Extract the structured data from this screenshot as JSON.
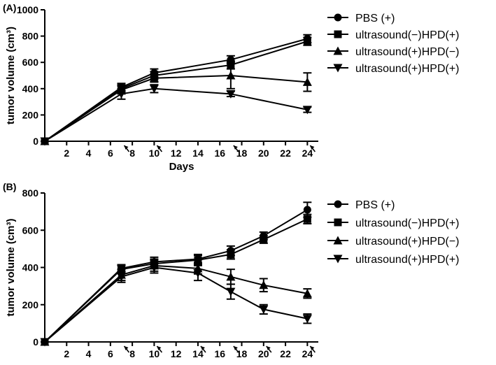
{
  "chart_data": [
    {
      "type": "line",
      "panel_label": "(A)",
      "title": "",
      "xlabel": "Days",
      "ylabel": "tumor volume (cm³)",
      "xlim": [
        0,
        25
      ],
      "ylim": [
        0,
        1000
      ],
      "x_ticks": [
        2,
        4,
        6,
        8,
        10,
        12,
        14,
        16,
        18,
        20,
        22,
        24
      ],
      "y_ticks": [
        0,
        200,
        400,
        600,
        800,
        1000
      ],
      "x_tick_labels": [
        "2",
        "4",
        "6",
        "8",
        "10",
        "12",
        "14",
        "16",
        "18",
        "20",
        "22",
        "24"
      ],
      "y_tick_labels": [
        "0",
        "200",
        "400",
        "600",
        "800",
        "1000"
      ],
      "arrow_days": [
        7,
        10,
        17,
        24
      ],
      "legend_position": "right",
      "grid": false,
      "series": [
        {
          "name": "PBS (+)",
          "marker": "circle",
          "x": [
            0,
            7,
            10,
            17,
            24
          ],
          "y": [
            0,
            410,
            520,
            620,
            780
          ],
          "err": [
            0,
            30,
            30,
            30,
            30
          ]
        },
        {
          "name": "ultrasound(−)HPD(+)",
          "marker": "square",
          "x": [
            0,
            7,
            10,
            17,
            24
          ],
          "y": [
            0,
            400,
            500,
            580,
            760
          ],
          "err": [
            0,
            30,
            30,
            30,
            30
          ]
        },
        {
          "name": "ultrasound(+)HPD(−)",
          "marker": "triangle-up",
          "x": [
            0,
            7,
            10,
            17,
            24
          ],
          "y": [
            0,
            390,
            480,
            500,
            450
          ],
          "err": [
            0,
            30,
            30,
            100,
            70
          ]
        },
        {
          "name": "ultrasound(+)HPD(+)",
          "marker": "triangle-down",
          "x": [
            0,
            7,
            10,
            17,
            24
          ],
          "y": [
            0,
            360,
            400,
            360,
            240
          ],
          "err": [
            0,
            40,
            30,
            20,
            20
          ]
        }
      ]
    },
    {
      "type": "line",
      "panel_label": "(B)",
      "title": "",
      "xlabel": "",
      "ylabel": "tumor volume (cm³)",
      "xlim": [
        0,
        25
      ],
      "ylim": [
        0,
        800
      ],
      "x_ticks": [
        2,
        4,
        6,
        8,
        10,
        12,
        14,
        16,
        18,
        20,
        22,
        24
      ],
      "y_ticks": [
        0,
        200,
        400,
        600,
        800
      ],
      "x_tick_labels": [
        "2",
        "4",
        "6",
        "8",
        "10",
        "12",
        "14",
        "16",
        "18",
        "20",
        "22",
        "24"
      ],
      "y_tick_labels": [
        "0",
        "200",
        "400",
        "600",
        "800"
      ],
      "arrow_days": [
        7,
        10,
        14,
        17,
        20,
        24
      ],
      "legend_position": "right",
      "grid": false,
      "series": [
        {
          "name": "PBS (+)",
          "marker": "circle",
          "x": [
            0,
            7,
            10,
            14,
            17,
            20,
            24
          ],
          "y": [
            0,
            395,
            430,
            445,
            490,
            570,
            710
          ],
          "err": [
            0,
            20,
            25,
            25,
            25,
            20,
            40
          ]
        },
        {
          "name": "ultrasound(−)HPD(+)",
          "marker": "square",
          "x": [
            0,
            7,
            10,
            14,
            17,
            20,
            24
          ],
          "y": [
            0,
            390,
            420,
            440,
            470,
            550,
            660
          ],
          "err": [
            0,
            20,
            25,
            25,
            25,
            20,
            25
          ]
        },
        {
          "name": "ultrasound(+)HPD(−)",
          "marker": "triangle-up",
          "x": [
            0,
            7,
            10,
            14,
            17,
            20,
            24
          ],
          "y": [
            0,
            360,
            410,
            395,
            350,
            305,
            260
          ],
          "err": [
            0,
            30,
            30,
            30,
            40,
            35,
            25
          ]
        },
        {
          "name": "ultrasound(+)HPD(+)",
          "marker": "triangle-down",
          "x": [
            0,
            7,
            10,
            14,
            17,
            20,
            24
          ],
          "y": [
            0,
            350,
            400,
            370,
            270,
            175,
            125
          ],
          "err": [
            0,
            30,
            30,
            40,
            40,
            25,
            25
          ]
        }
      ]
    }
  ]
}
